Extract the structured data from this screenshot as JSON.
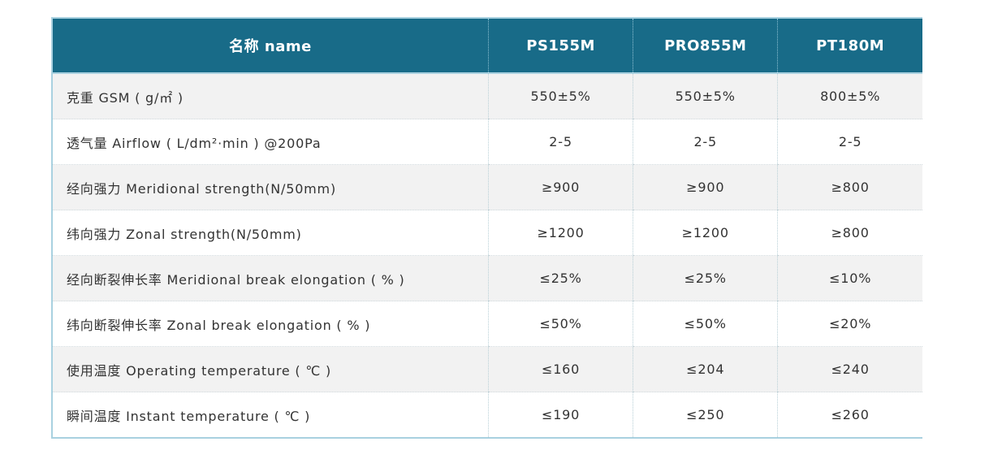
{
  "table": {
    "headers": [
      "名称 name",
      "PS155M",
      "PRO855M",
      "PT180M"
    ],
    "rows": [
      {
        "label": "克重   GSM ( g/㎡ )",
        "values": [
          "550±5%",
          "550±5%",
          "800±5%"
        ]
      },
      {
        "label": "透气量 Airflow (   L/dm²·min ) @200Pa",
        "values": [
          "2-5",
          "2-5",
          "2-5"
        ]
      },
      {
        "label": "经向强力 Meridional strength(N/50mm)",
        "values": [
          "≥900",
          "≥900",
          "≥800"
        ]
      },
      {
        "label": "纬向强力 Zonal strength(N/50mm)",
        "values": [
          "≥1200",
          "≥1200",
          "≥800"
        ]
      },
      {
        "label": "经向断裂伸长率 Meridional break elongation ( % )",
        "values": [
          "≤25%",
          "≤25%",
          "≤10%"
        ]
      },
      {
        "label": "纬向断裂伸长率 Zonal  break elongation ( % )",
        "values": [
          "≤50%",
          "≤50%",
          "≤20%"
        ]
      },
      {
        "label": "使用温度 Operating temperature ( ℃ )",
        "values": [
          "≤160",
          "≤204",
          "≤240"
        ]
      },
      {
        "label": "瞬间温度 Instant temperature ( ℃ )",
        "values": [
          "≤190",
          "≤250",
          "≤260"
        ]
      }
    ]
  },
  "colors": {
    "header_bg": "#186b88",
    "header_text": "#ffffff",
    "row_alt_bg": "#f2f2f2",
    "border": "#a9d1e0"
  }
}
